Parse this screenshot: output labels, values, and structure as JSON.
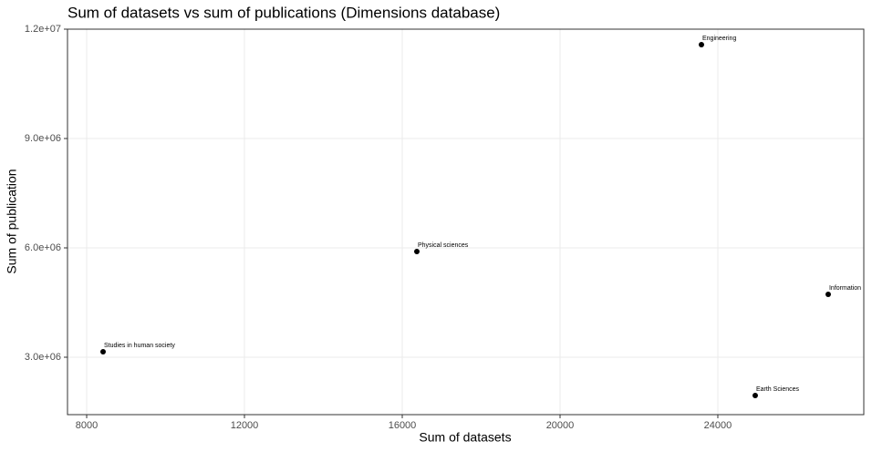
{
  "chart_data": {
    "type": "scatter",
    "title": "Sum of datasets vs sum of publications (Dimensions database)",
    "x_label": "Sum of datasets",
    "y_label": "Sum of publication",
    "x": [
      8416,
      16370,
      23584,
      26798,
      24948
    ],
    "values": [
      3150000,
      5900000,
      11575000,
      4725000,
      1950000
    ],
    "point_labels": [
      "Studies in human society",
      "Physical sciences",
      "Engineering",
      "Information",
      "Earth Sciences"
    ],
    "color": "#000000",
    "xlim": [
      7514,
      27700
    ],
    "xticks": [
      8000,
      12000,
      16000,
      20000,
      24000
    ],
    "ylim": [
      1425000,
      12000000
    ],
    "yticks": [
      {
        "value": 3000000,
        "label": "3.0e+06"
      },
      {
        "value": 6000000,
        "label": "6.0e+06"
      },
      {
        "value": 9000000,
        "label": "9.0e+06"
      },
      {
        "value": 12000000,
        "label": "1.2e+07"
      }
    ],
    "grid": true
  }
}
